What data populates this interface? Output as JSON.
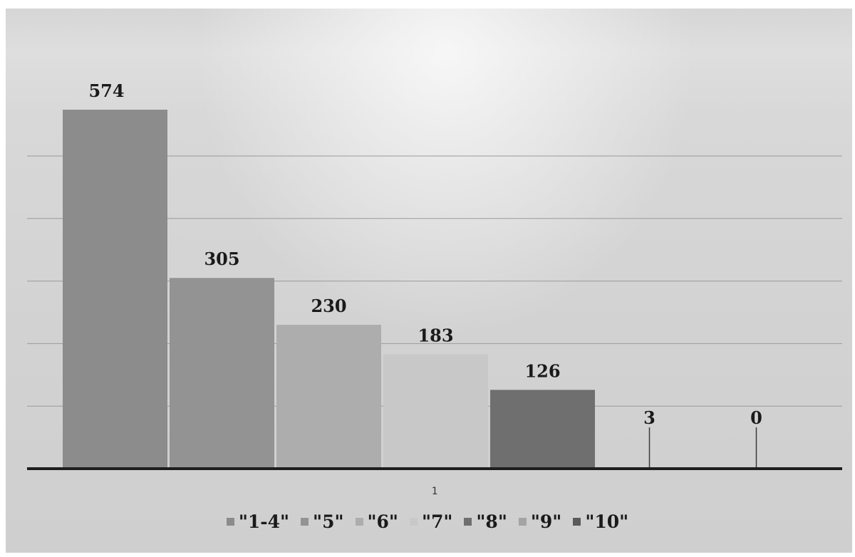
{
  "chart_data": {
    "type": "bar",
    "categories": [
      "1"
    ],
    "series": [
      {
        "name": "\"1-4\"",
        "values": [
          574
        ],
        "color": "#8c8c8c"
      },
      {
        "name": "\"5\"",
        "values": [
          305
        ],
        "color": "#939393"
      },
      {
        "name": "\"6\"",
        "values": [
          230
        ],
        "color": "#adadad"
      },
      {
        "name": "\"7\"",
        "values": [
          183
        ],
        "color": "#c8c8c8"
      },
      {
        "name": "\"8\"",
        "values": [
          126
        ],
        "color": "#6f6f6f"
      },
      {
        "name": "\"9\"",
        "values": [
          3
        ],
        "color": "#a4a4a4"
      },
      {
        "name": "\"10\"",
        "values": [
          0
        ],
        "color": "#5a5a5a"
      }
    ],
    "ylim": [
      0,
      600
    ],
    "grid": true,
    "legend_position": "bottom",
    "data_labels": [
      "574",
      "305",
      "230",
      "183",
      "126",
      "3",
      "0"
    ]
  }
}
